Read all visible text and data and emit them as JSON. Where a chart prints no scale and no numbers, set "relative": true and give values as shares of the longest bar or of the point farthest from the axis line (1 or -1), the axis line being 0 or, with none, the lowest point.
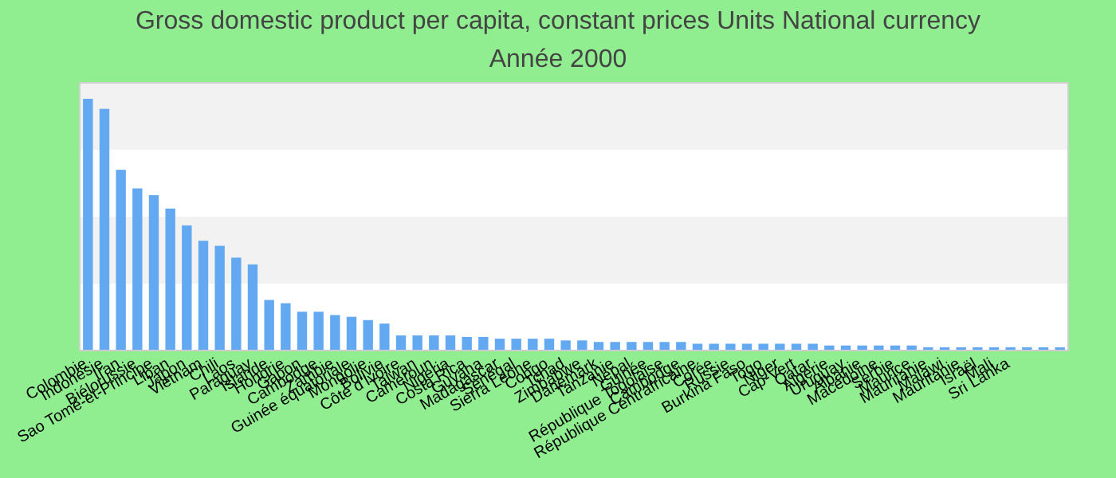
{
  "chart_data": {
    "type": "bar",
    "title": "Gross domestic product per capita, constant prices Units National currency",
    "subtitle": "Année 2000",
    "relative": true,
    "color": "#63a9f2",
    "categories": [
      "Colombie",
      "Indonésie",
      "Iran",
      "Biélorussie",
      "Sao Tomé-et-Principe",
      "Liban",
      "Japon",
      "Vietnam",
      "Chili",
      "Laos",
      "Paraguay",
      "Islande",
      "Hongrie",
      "Gabon",
      "Cambodge",
      "Zambie",
      "Guinée équatoriale",
      "Mongolie",
      "Bolivie",
      "Côte d'Ivoire",
      "Taiwan",
      "Cameroun",
      "Nigeria",
      "Costa Rica",
      "Guyana",
      "Madagascar",
      "Sénégal",
      "Sierra Leone",
      "Congo",
      "Tchad",
      "Zimbabwe",
      "Danemark",
      "Tanzanie",
      "Népal",
      "Guinée",
      "République Togolaise",
      "Cambodge",
      "République Centrafricaine",
      "Corée",
      "Russie",
      "Burkina Faso",
      "Togo",
      "Niger",
      "Cap-Vert",
      "Qatar",
      "Algérie",
      "Uruguay",
      "Albanie",
      "Macédoine",
      "Serbie",
      "Maurice",
      "Mauritanie",
      "Malawi",
      "Mauritanie",
      "Israël",
      "Mali",
      "Sri Lanka",
      null,
      null,
      null
    ],
    "values": [
      1,
      0.96,
      0.718,
      0.644,
      0.617,
      0.564,
      0.497,
      0.436,
      0.416,
      0.369,
      0.342,
      0.201,
      0.188,
      0.154,
      0.154,
      0.141,
      0.134,
      0.121,
      0.107,
      0.06,
      0.06,
      0.06,
      0.06,
      0.054,
      0.054,
      0.047,
      0.047,
      0.047,
      0.047,
      0.04,
      0.04,
      0.034,
      0.034,
      0.034,
      0.034,
      0.034,
      0.034,
      0.027,
      0.027,
      0.027,
      0.027,
      0.027,
      0.027,
      0.027,
      0.027,
      0.02,
      0.02,
      0.02,
      0.02,
      0.02,
      0.02,
      0.013,
      0.013,
      0.013,
      0.013,
      0.013,
      0.013,
      0.013,
      0.013,
      0.013
    ]
  }
}
